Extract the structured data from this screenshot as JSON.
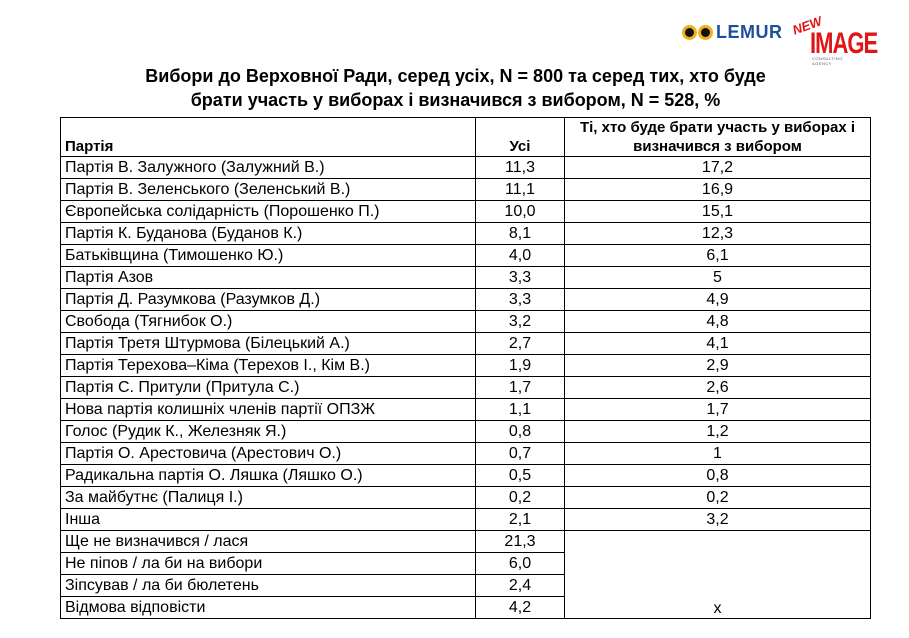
{
  "logos": {
    "lemur_text": "LEMUR",
    "new_text": "NEW",
    "image_text": "IMAGE",
    "image_subtext": "CONSULTING AGENCY"
  },
  "title": {
    "line1": "Вибори до Верховної Ради, серед усіх, N = 800 та серед тих, хто буде",
    "line2": "брати участь у виборах і визначився з вибором, N = 528, %"
  },
  "table": {
    "headers": {
      "party": "Партія",
      "all": "Усі",
      "voters": "Ті, хто буде брати участь у виборах і визначився з вибором"
    },
    "rows": [
      {
        "party": "Партія В. Залужного (Залужний В.)",
        "all": "11,3",
        "voters": "17,2"
      },
      {
        "party": "Партія В. Зеленського (Зеленський В.)",
        "all": "11,1",
        "voters": "16,9"
      },
      {
        "party": "Європейська солідарність (Порошенко П.)",
        "all": "10,0",
        "voters": "15,1"
      },
      {
        "party": "Партія К. Буданова (Буданов К.)",
        "all": "8,1",
        "voters": "12,3"
      },
      {
        "party": "Батьківщина (Тимошенко Ю.)",
        "all": "4,0",
        "voters": "6,1"
      },
      {
        "party": "Партія Азов",
        "all": "3,3",
        "voters": "5"
      },
      {
        "party": "Партія Д. Разумкова (Разумков Д.)",
        "all": "3,3",
        "voters": "4,9"
      },
      {
        "party": "Свобода (Тягнибок О.)",
        "all": "3,2",
        "voters": "4,8"
      },
      {
        "party": "Партія Третя Штурмова (Білецький А.)",
        "all": "2,7",
        "voters": "4,1"
      },
      {
        "party": "Партія Терехова–Кіма (Терехов І., Кім В.)",
        "all": "1,9",
        "voters": "2,9"
      },
      {
        "party": "Партія С. Притули (Притула С.)",
        "all": "1,7",
        "voters": "2,6"
      },
      {
        "party": "Нова партія колишніх членів партії ОПЗЖ",
        "all": "1,1",
        "voters": "1,7"
      },
      {
        "party": "Голос (Рудик К., Железняк Я.)",
        "all": "0,8",
        "voters": "1,2"
      },
      {
        "party": "Партія О. Арестовича (Арестович О.)",
        "all": "0,7",
        "voters": "1"
      },
      {
        "party": "Радикальна партія О. Ляшка (Ляшко О.)",
        "all": "0,5",
        "voters": "0,8"
      },
      {
        "party": "За майбутнє (Палиця І.)",
        "all": "0,2",
        "voters": "0,2"
      },
      {
        "party": "Інша",
        "all": "2,1",
        "voters": "3,2"
      }
    ],
    "extra_rows": [
      {
        "party": "Ще не визначився / лася",
        "all": "21,3"
      },
      {
        "party": "Не піпов / ла би на вибори",
        "all": "6,0"
      },
      {
        "party": "Зіпсував / ла би бюлетень",
        "all": "2,4"
      },
      {
        "party": "Відмова відповісти",
        "all": "4,2"
      }
    ],
    "extra_voters_value": "x"
  }
}
